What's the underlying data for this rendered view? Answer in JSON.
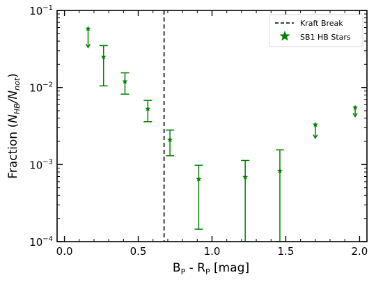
{
  "chart_data": {
    "type": "scatter",
    "title": "",
    "xlabel": "B_P - R_P [mag]",
    "ylabel": "Fraction (N_HB/N_not)",
    "xlim": [
      -0.05,
      2.05
    ],
    "ylim": [
      0.0001,
      0.1
    ],
    "yscale": "log",
    "x_ticks": [
      0.0,
      0.5,
      1.0,
      1.5,
      2.0
    ],
    "x_tick_labels": [
      "0.0",
      "0.5",
      "1.0",
      "1.5",
      "2.0"
    ],
    "y_ticks": [
      0.0001,
      0.001,
      0.01,
      0.1
    ],
    "grid": false,
    "legend_position": "top-right",
    "kraft_break": {
      "name": "Kraft Break",
      "x": 0.675,
      "color": "#000000"
    },
    "series": [
      {
        "name": "SB1 HB Stars",
        "color": "#008000",
        "marker": "star",
        "points": [
          {
            "x": 0.16,
            "y": 0.058,
            "upper_limit": true,
            "arrow_to": 0.033
          },
          {
            "x": 0.265,
            "y": 0.025,
            "err_low": 0.0105,
            "err_high": 0.035
          },
          {
            "x": 0.41,
            "y": 0.012,
            "err_low": 0.0082,
            "err_high": 0.0155
          },
          {
            "x": 0.565,
            "y": 0.0053,
            "err_low": 0.0036,
            "err_high": 0.0068
          },
          {
            "x": 0.715,
            "y": 0.0021,
            "err_low": 0.0013,
            "err_high": 0.0028
          },
          {
            "x": 0.91,
            "y": 0.00065,
            "err_low": 0.000145,
            "err_high": 0.00098
          },
          {
            "x": 1.225,
            "y": 0.00069,
            "err_low": 0.0001,
            "err_high": 0.00113
          },
          {
            "x": 1.46,
            "y": 0.00083,
            "err_low": 0.0001,
            "err_high": 0.00155
          },
          {
            "x": 1.7,
            "y": 0.0033,
            "upper_limit": true,
            "arrow_to": 0.0022
          },
          {
            "x": 1.97,
            "y": 0.0055,
            "upper_limit": true,
            "arrow_to": 0.0042
          }
        ]
      }
    ]
  }
}
